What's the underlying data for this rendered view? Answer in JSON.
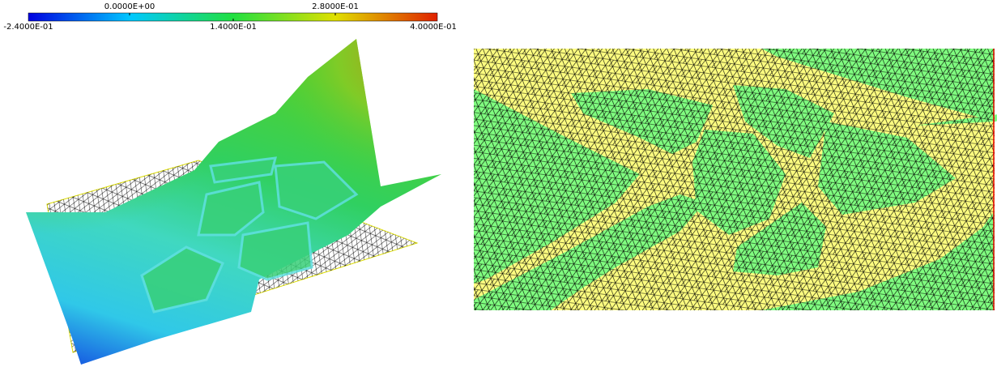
{
  "colorbar": {
    "upper_labels": [
      "0.0000E+00",
      "2.8000E-01"
    ],
    "lower_labels": [
      "-2.4000E-01",
      "1.4000E-01",
      "4.0000E-01"
    ]
  }
}
